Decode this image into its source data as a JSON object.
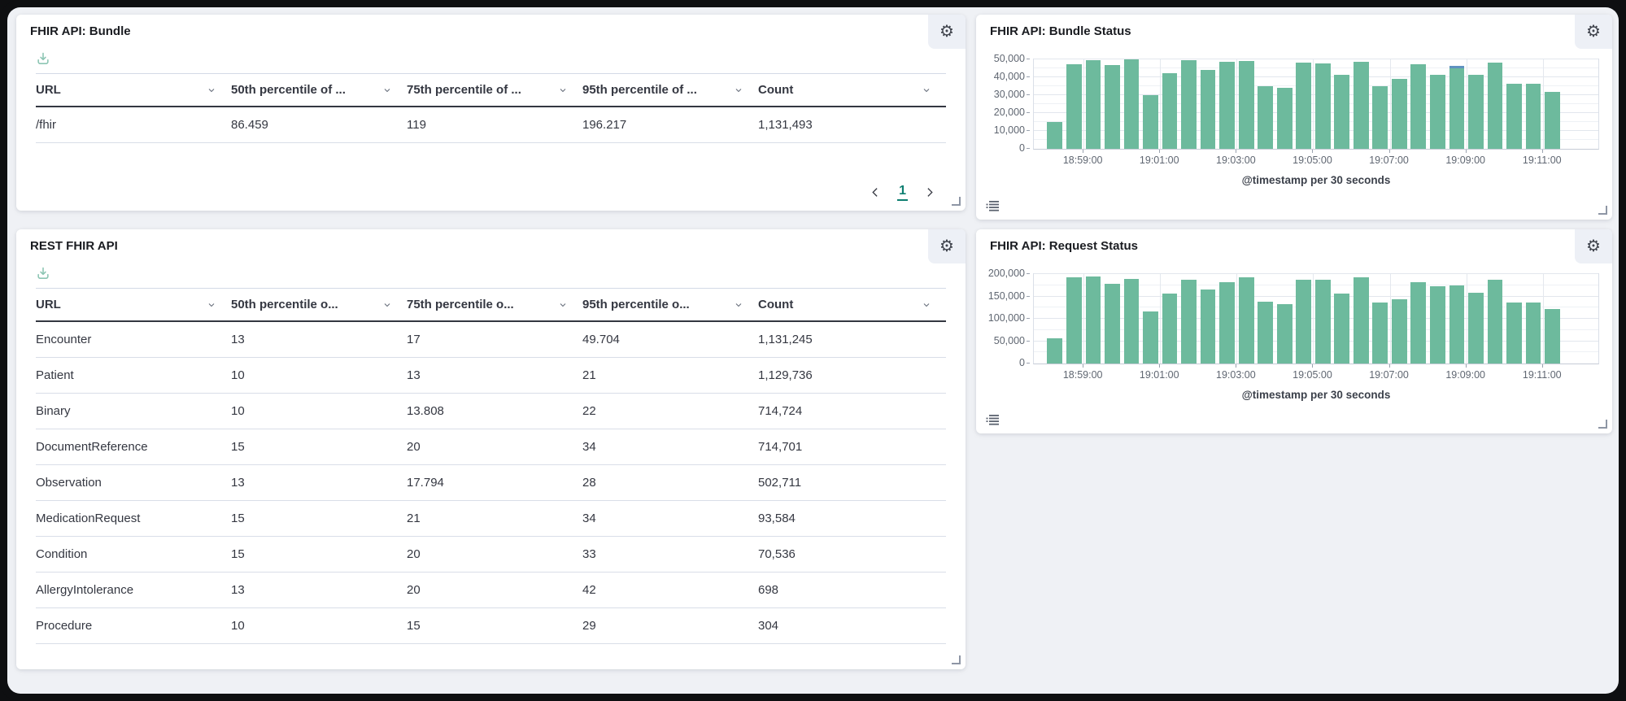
{
  "panels": {
    "bundle_table": {
      "title": "FHIR API: Bundle",
      "headers": [
        "URL",
        "50th percentile of ...",
        "75th percentile of ...",
        "95th percentile of ...",
        "Count"
      ],
      "rows": [
        [
          "/fhir",
          "86.459",
          "119",
          "196.217",
          "1,131,493"
        ]
      ],
      "pagination": {
        "current": "1"
      }
    },
    "bundle_status": {
      "title": "FHIR API: Bundle Status"
    },
    "rest_table": {
      "title": "REST FHIR API",
      "headers": [
        "URL",
        "50th percentile o...",
        "75th percentile o...",
        "95th percentile o...",
        "Count"
      ],
      "rows": [
        [
          "Encounter",
          "13",
          "17",
          "49.704",
          "1,131,245"
        ],
        [
          "Patient",
          "10",
          "13",
          "21",
          "1,129,736"
        ],
        [
          "Binary",
          "10",
          "13.808",
          "22",
          "714,724"
        ],
        [
          "DocumentReference",
          "15",
          "20",
          "34",
          "714,701"
        ],
        [
          "Observation",
          "13",
          "17.794",
          "28",
          "502,711"
        ],
        [
          "MedicationRequest",
          "15",
          "21",
          "34",
          "93,584"
        ],
        [
          "Condition",
          "15",
          "20",
          "33",
          "70,536"
        ],
        [
          "AllergyIntolerance",
          "13",
          "20",
          "42",
          "698"
        ],
        [
          "Procedure",
          "10",
          "15",
          "29",
          "304"
        ]
      ]
    },
    "request_status": {
      "title": "FHIR API: Request Status"
    }
  },
  "colors": {
    "bar_green": "#6dba9d",
    "bar_blue": "#6092c0",
    "accent_teal": "#0d7e70",
    "panel_bg": "#ffffff",
    "dashboard_bg": "#eff1f5",
    "text": "#343741",
    "axis_text": "#5f6671"
  },
  "chart_data": [
    {
      "type": "bar",
      "title": "FHIR API: Bundle Status",
      "xlabel": "@timestamp per 30 seconds",
      "x_tick_labels": [
        "18:59:00",
        "19:01:00",
        "19:03:00",
        "19:05:00",
        "19:07:00",
        "19:09:00",
        "19:11:00"
      ],
      "x_tick_bar_index": [
        2,
        6,
        10,
        14,
        18,
        22,
        26
      ],
      "ylim": [
        0,
        50000
      ],
      "y_ticks": [
        0,
        10000,
        20000,
        30000,
        40000,
        50000
      ],
      "y_minor_step": 5000,
      "grid": true,
      "legend_position": "hidden",
      "series": [
        {
          "name": "bundle-status-green",
          "color": "bar_green",
          "values": [
            15200,
            47500,
            49700,
            46800,
            49900,
            30000,
            42400,
            49500,
            44300,
            48800,
            49300,
            35200,
            34200,
            48000,
            47600,
            41300,
            48500,
            35000,
            39000,
            47400,
            41500,
            44800,
            41200,
            48400,
            36300,
            36300,
            32000
          ]
        },
        {
          "name": "bundle-status-blue",
          "color": "bar_blue",
          "values": [
            0,
            0,
            0,
            0,
            0,
            0,
            0,
            0,
            0,
            0,
            0,
            0,
            0,
            0,
            0,
            0,
            0,
            0,
            0,
            0,
            0,
            1500,
            0,
            0,
            0,
            0,
            0
          ]
        }
      ]
    },
    {
      "type": "bar",
      "title": "FHIR API: Request Status",
      "xlabel": "@timestamp per 30 seconds",
      "x_tick_labels": [
        "18:59:00",
        "19:01:00",
        "19:03:00",
        "19:05:00",
        "19:07:00",
        "19:09:00",
        "19:11:00"
      ],
      "x_tick_bar_index": [
        2,
        6,
        10,
        14,
        18,
        22,
        26
      ],
      "ylim": [
        0,
        200000
      ],
      "y_ticks": [
        0,
        50000,
        100000,
        150000,
        200000
      ],
      "y_minor_step": 25000,
      "grid": true,
      "legend_position": "hidden",
      "series": [
        {
          "name": "request-status-green",
          "color": "bar_green",
          "values": [
            57000,
            192000,
            195000,
            178000,
            189000,
            116000,
            157000,
            187000,
            166000,
            182000,
            192000,
            138000,
            132000,
            187000,
            187000,
            156000,
            193000,
            137000,
            144000,
            181000,
            172000,
            175000,
            159000,
            187000,
            136000,
            137000,
            121000
          ]
        }
      ]
    }
  ]
}
